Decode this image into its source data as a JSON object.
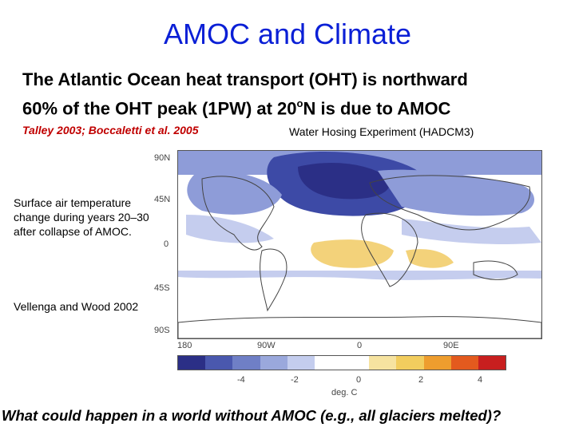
{
  "slide": {
    "title": "AMOC and Climate",
    "subtitle_line1": "The Atlantic Ocean heat transport (OHT) is northward",
    "subtitle_line2_a": "60% of the OHT peak (1PW) at 20",
    "subtitle_line2_sup": "o",
    "subtitle_line2_b": "N is due to AMOC",
    "citation": "Talley 2003;  Boccaletti et al. 2005",
    "experiment_label": "Water Hosing Experiment (HADCM3)",
    "caption": "Surface air temperature change during years 20–30 after collapse of AMOC.",
    "source": "Vellenga and Wood 2002",
    "question": "What could happen in a world without AMOC (e.g., all glaciers melted)?"
  },
  "figure": {
    "lat_labels": [
      "90N",
      "45N",
      "0",
      "45S",
      "90S"
    ],
    "lon_labels": [
      "180",
      "90W",
      "0",
      "90E"
    ],
    "colorbar_ticks": [
      "-4",
      "-2",
      "0",
      "2",
      "4"
    ],
    "colorbar_unit": "deg. C",
    "colorbar_colors": [
      "#2b2f86",
      "#4a58ae",
      "#6f7fc6",
      "#9aa8dc",
      "#c4cdee",
      "#ffffff",
      "#ffffff",
      "#f6e3a0",
      "#f2cd5e",
      "#ee9d2e",
      "#e35a1e",
      "#c81f1f"
    ],
    "cold": "#3d4aa6",
    "cool": "#8e9cd8",
    "light": "#c5cdee",
    "warm": "#f3d27a"
  }
}
